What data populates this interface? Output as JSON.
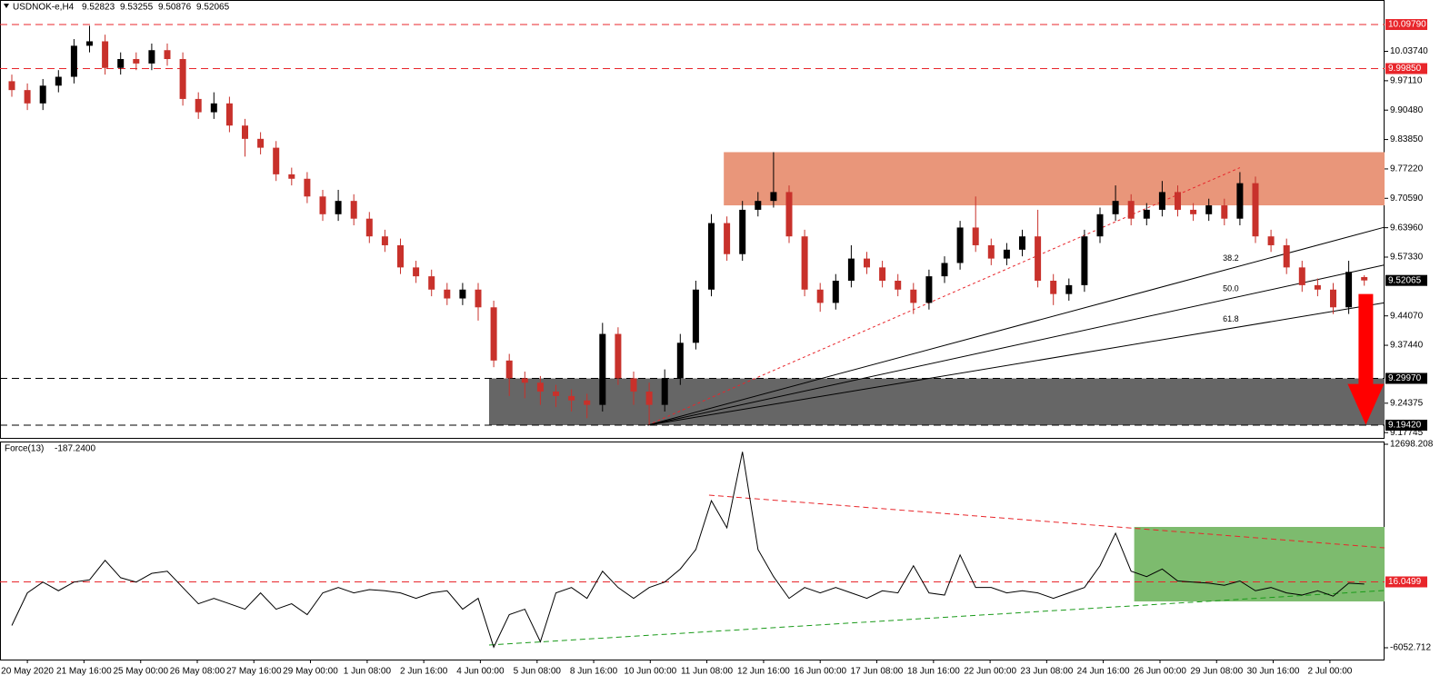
{
  "chart_data": {
    "type": "candlestick",
    "symbol": "USDNOK-e,H4",
    "up_color": "#000000",
    "down_color": "#c8312b",
    "open": [
      9.97,
      9.95,
      9.92,
      9.96,
      9.98,
      10.05,
      10.06,
      10.0,
      10.02,
      10.01,
      10.04,
      10.02,
      9.93,
      9.9,
      9.92,
      9.87,
      9.84,
      9.82,
      9.76,
      9.75,
      9.71,
      9.67,
      9.7,
      9.66,
      9.62,
      9.6,
      9.55,
      9.53,
      9.5,
      9.48,
      9.5,
      9.46,
      9.34,
      9.3,
      9.29,
      9.27,
      9.26,
      9.25,
      9.24,
      9.4,
      9.3,
      9.27,
      9.24,
      9.3,
      9.38,
      9.5,
      9.65,
      9.58,
      9.68,
      9.7,
      9.72,
      9.62,
      9.5,
      9.47,
      9.52,
      9.57,
      9.55,
      9.52,
      9.5,
      9.47,
      9.53,
      9.56,
      9.64,
      9.6,
      9.57,
      9.59,
      9.62,
      9.52,
      9.49,
      9.51,
      9.62,
      9.67,
      9.7,
      9.66,
      9.68,
      9.72,
      9.68,
      9.67,
      9.69,
      9.66,
      9.74,
      9.62,
      9.6,
      9.55,
      9.51,
      9.5,
      9.46,
      9.52823
    ],
    "high": [
      9.985,
      9.965,
      9.975,
      9.995,
      10.065,
      10.095,
      10.075,
      10.035,
      10.035,
      10.055,
      10.055,
      10.035,
      9.945,
      9.945,
      9.935,
      9.885,
      9.855,
      9.835,
      9.775,
      9.765,
      9.725,
      9.725,
      9.715,
      9.675,
      9.635,
      9.615,
      9.565,
      9.545,
      9.515,
      9.515,
      9.515,
      9.475,
      9.355,
      9.315,
      9.305,
      9.285,
      9.275,
      9.265,
      9.425,
      9.415,
      9.315,
      9.29,
      9.32,
      9.4,
      9.52,
      9.67,
      9.665,
      9.7,
      9.72,
      9.81,
      9.735,
      9.635,
      9.515,
      9.535,
      9.6,
      9.585,
      9.565,
      9.535,
      9.515,
      9.545,
      9.575,
      9.655,
      9.71,
      9.615,
      9.605,
      9.635,
      9.68,
      9.535,
      9.525,
      9.635,
      9.685,
      9.735,
      9.715,
      9.695,
      9.745,
      9.735,
      9.695,
      9.705,
      9.705,
      9.765,
      9.755,
      9.635,
      9.615,
      9.565,
      9.525,
      9.515,
      9.565,
      9.53255
    ],
    "low": [
      9.935,
      9.905,
      9.905,
      9.945,
      9.965,
      10.035,
      9.985,
      9.985,
      9.995,
      9.995,
      10.005,
      9.915,
      9.885,
      9.885,
      9.855,
      9.8,
      9.805,
      9.745,
      9.735,
      9.695,
      9.655,
      9.655,
      9.645,
      9.605,
      9.585,
      9.535,
      9.515,
      9.485,
      9.465,
      9.465,
      9.43,
      9.325,
      9.26,
      9.255,
      9.24,
      9.235,
      9.225,
      9.21,
      9.225,
      9.285,
      9.24,
      9.195,
      9.225,
      9.285,
      9.365,
      9.485,
      9.565,
      9.565,
      9.665,
      9.685,
      9.605,
      9.485,
      9.45,
      9.455,
      9.505,
      9.535,
      9.505,
      9.485,
      9.445,
      9.455,
      9.515,
      9.545,
      9.585,
      9.555,
      9.555,
      9.575,
      9.505,
      9.465,
      9.475,
      9.495,
      9.605,
      9.655,
      9.645,
      9.645,
      9.665,
      9.665,
      9.655,
      9.655,
      9.645,
      9.645,
      9.605,
      9.585,
      9.535,
      9.495,
      9.485,
      9.445,
      9.445,
      9.50876
    ],
    "close": [
      9.95,
      9.92,
      9.96,
      9.98,
      10.05,
      10.06,
      10.0,
      10.02,
      10.01,
      10.04,
      10.02,
      9.93,
      9.9,
      9.92,
      9.87,
      9.84,
      9.82,
      9.76,
      9.75,
      9.71,
      9.67,
      9.7,
      9.66,
      9.62,
      9.6,
      9.55,
      9.53,
      9.5,
      9.48,
      9.5,
      9.46,
      9.34,
      9.3,
      9.29,
      9.27,
      9.26,
      9.25,
      9.24,
      9.4,
      9.3,
      9.27,
      9.24,
      9.3,
      9.38,
      9.5,
      9.65,
      9.58,
      9.68,
      9.7,
      9.72,
      9.62,
      9.5,
      9.47,
      9.52,
      9.57,
      9.55,
      9.52,
      9.5,
      9.47,
      9.53,
      9.56,
      9.64,
      9.6,
      9.57,
      9.59,
      9.62,
      9.52,
      9.49,
      9.51,
      9.62,
      9.67,
      9.7,
      9.66,
      9.68,
      9.72,
      9.68,
      9.67,
      9.69,
      9.66,
      9.74,
      9.62,
      9.6,
      9.55,
      9.51,
      9.5,
      9.46,
      9.54,
      9.52065
    ],
    "ylim": [
      9.1655,
      10.1532
    ],
    "yticks": [
      {
        "value": 10.0374,
        "label": "10.03740"
      },
      {
        "value": 9.9711,
        "label": "9.97110"
      },
      {
        "value": 9.9048,
        "label": "9.90480"
      },
      {
        "value": 9.8385,
        "label": "9.83850"
      },
      {
        "value": 9.7722,
        "label": "9.77220"
      },
      {
        "value": 9.7059,
        "label": "9.70590"
      },
      {
        "value": 9.6396,
        "label": "9.63960"
      },
      {
        "value": 9.5733,
        "label": "9.57330"
      },
      {
        "value": 9.4407,
        "label": "9.44070"
      },
      {
        "value": 9.3744,
        "label": "9.37440"
      },
      {
        "value": 9.24375,
        "label": "9.24375"
      },
      {
        "value": 9.17745,
        "label": "9.17745"
      }
    ],
    "xticks": [
      {
        "value": 1,
        "label": "20 May 2020"
      },
      {
        "value": 4.64,
        "label": "21 May 16:00"
      },
      {
        "value": 8.29,
        "label": "25 May 00:00"
      },
      {
        "value": 11.93,
        "label": "26 May 08:00"
      },
      {
        "value": 15.57,
        "label": "27 May 16:00"
      },
      {
        "value": 19.21,
        "label": "29 May 00:00"
      },
      {
        "value": 22.86,
        "label": "1 Jun 08:00"
      },
      {
        "value": 26.5,
        "label": "2 Jun 16:00"
      },
      {
        "value": 30.14,
        "label": "4 Jun 00:00"
      },
      {
        "value": 33.79,
        "label": "5 Jun 08:00"
      },
      {
        "value": 37.43,
        "label": "8 Jun 16:00"
      },
      {
        "value": 41.07,
        "label": "10 Jun 00:00"
      },
      {
        "value": 44.71,
        "label": "11 Jun 08:00"
      },
      {
        "value": 48.36,
        "label": "12 Jun 16:00"
      },
      {
        "value": 52,
        "label": "16 Jun 00:00"
      },
      {
        "value": 55.64,
        "label": "17 Jun 08:00"
      },
      {
        "value": 59.29,
        "label": "18 Jun 16:00"
      },
      {
        "value": 62.93,
        "label": "22 Jun 00:00"
      },
      {
        "value": 66.57,
        "label": "23 Jun 08:00"
      },
      {
        "value": 70.21,
        "label": "24 Jun 16:00"
      },
      {
        "value": 73.86,
        "label": "26 Jun 00:00"
      },
      {
        "value": 77.5,
        "label": "29 Jun 08:00"
      },
      {
        "value": 81.14,
        "label": "30 Jun 16:00"
      },
      {
        "value": 84.79,
        "label": "2 Jul 00:00"
      }
    ],
    "levels": [
      {
        "value": 10.0979,
        "label": "10.09790",
        "color": "#e8262b"
      },
      {
        "value": 9.9985,
        "label": "9.99850",
        "color": "#e8262b"
      },
      {
        "value": 9.2997,
        "label": "9.29970",
        "color": "#000000"
      },
      {
        "value": 9.1942,
        "label": "9.19420",
        "color": "#000000"
      }
    ],
    "zones": [
      {
        "from": 9.69,
        "to": 9.81,
        "start": 45.8,
        "color": "#e9967a"
      },
      {
        "from": 9.1942,
        "to": 9.2997,
        "start": 30.7,
        "color": "#666666"
      }
    ],
    "fib_fan": {
      "start": [
        40.9,
        9.1942
      ],
      "end": [
        79,
        9.775
      ],
      "levels": [
        38.2,
        50.0,
        61.8
      ],
      "labels": [
        "38.2",
        "50.0",
        "61.8"
      ],
      "color": "#000000",
      "trend_color": "#e8262b"
    },
    "arrow": {
      "x": 87.1,
      "from": 9.49,
      "to": 9.195,
      "color": "#ff0000"
    },
    "force": {
      "name": "Force(13)",
      "current_label": "-187.2400",
      "color": "#000000",
      "values": [
        -4000,
        -1000,
        0,
        -800,
        0,
        200,
        2000,
        400,
        0,
        800,
        1000,
        -500,
        -2000,
        -1500,
        -2000,
        -2500,
        -1000,
        -2500,
        -2000,
        -3000,
        -1000,
        -500,
        -1000,
        -700,
        -800,
        -1000,
        -1500,
        -1000,
        -800,
        -2500,
        -1500,
        -6000,
        -3000,
        -2500,
        -5500,
        -1000,
        -500,
        -1500,
        1000,
        -500,
        -1500,
        -500,
        0,
        1200,
        3000,
        7500,
        5000,
        12000,
        3000,
        500,
        -1500,
        -500,
        -1000,
        -500,
        -1000,
        -1500,
        -800,
        -1000,
        1500,
        -1000,
        -1200,
        2500,
        -500,
        -500,
        -1000,
        -800,
        -1000,
        -1500,
        -1000,
        -500,
        1500,
        4500,
        1000,
        500,
        1200,
        100,
        0,
        -100,
        -300,
        100,
        -800,
        -500,
        -1000,
        -1200,
        -800,
        -1300,
        -100,
        -187.24
      ],
      "ylim": [
        -7141,
        12949
      ],
      "yticks": [
        12698.208,
        -6052.712
      ],
      "level": {
        "value": 16.0499,
        "color": "#e8262b"
      },
      "trendlines": [
        {
          "from": [
            44.85,
            8010
          ],
          "to": [
            88.3,
            3155
          ],
          "color": "#e8262b"
        },
        {
          "from": [
            30.7,
            -5800
          ],
          "to": [
            88.3,
            -780
          ],
          "color": "#1a9a1a"
        }
      ],
      "zone": {
        "start": 72.2,
        "from": -1785,
        "to": 5080,
        "color": "#7dbb6e"
      }
    }
  }
}
